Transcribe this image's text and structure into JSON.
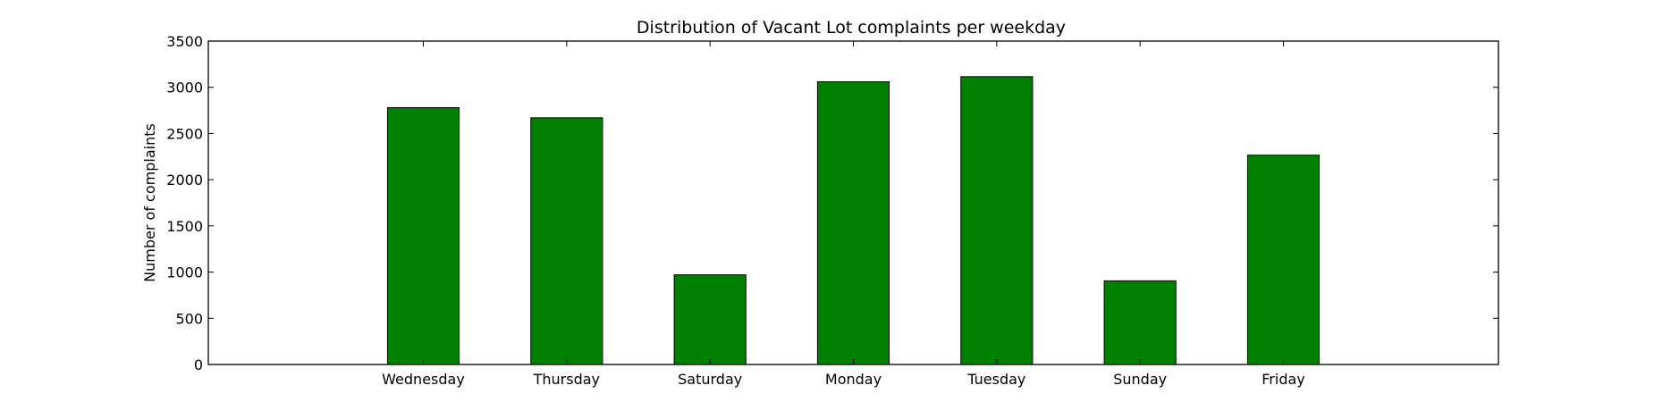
{
  "chart_data": {
    "type": "bar",
    "title": "Distribution of  Vacant Lot complaints per weekday",
    "xlabel": "",
    "ylabel": "Number of complaints",
    "categories": [
      "Wednesday",
      "Thursday",
      "Saturday",
      "Monday",
      "Tuesday",
      "Sunday",
      "Friday"
    ],
    "values": [
      2780,
      2670,
      970,
      3060,
      3115,
      905,
      2265
    ],
    "ylim": [
      0,
      3500
    ],
    "yticks": [
      0,
      500,
      1000,
      1500,
      2000,
      2500,
      3000,
      3500
    ],
    "xlim": [
      -1.5,
      7.5
    ],
    "grid": false,
    "legend": "none",
    "colors": {
      "bar": "#008000",
      "edge": "#000000",
      "axes": "#000000",
      "background": "#ffffff"
    }
  }
}
